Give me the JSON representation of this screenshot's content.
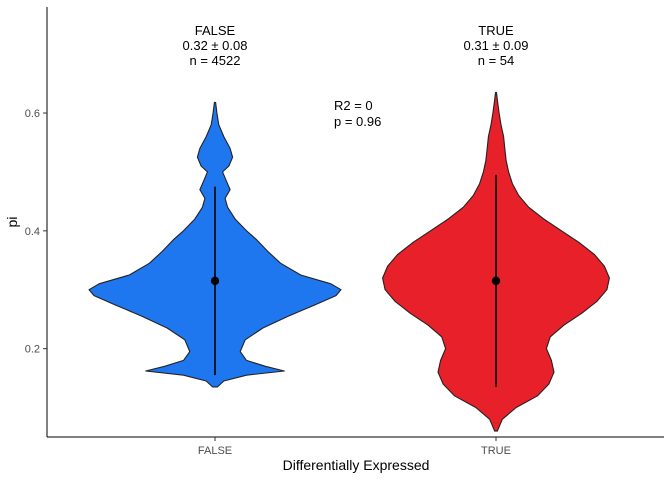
{
  "chart_data": {
    "type": "violin",
    "xlabel": "Differentially Expressed",
    "ylabel": "pi",
    "ylim": [
      0.05,
      0.78
    ],
    "yticks": [
      0.2,
      0.4,
      0.6
    ],
    "ytick_labels": [
      "0.2",
      "0.4",
      "0.6"
    ],
    "grid": false,
    "categories": [
      "FALSE",
      "TRUE"
    ],
    "groups": [
      {
        "category": "FALSE",
        "color": "#1f77f0",
        "header": "FALSE",
        "stat_line": "0.32 ± 0.08",
        "n_line": "n = 4522",
        "mean": 0.315,
        "err_low": 0.155,
        "err_high": 0.475,
        "density": [
          [
            0.135,
            0.02
          ],
          [
            0.145,
            0.07
          ],
          [
            0.155,
            0.25
          ],
          [
            0.162,
            0.55
          ],
          [
            0.17,
            0.4
          ],
          [
            0.18,
            0.25
          ],
          [
            0.195,
            0.2
          ],
          [
            0.215,
            0.24
          ],
          [
            0.235,
            0.38
          ],
          [
            0.255,
            0.58
          ],
          [
            0.275,
            0.8
          ],
          [
            0.29,
            0.96
          ],
          [
            0.3,
            1.0
          ],
          [
            0.31,
            0.92
          ],
          [
            0.325,
            0.68
          ],
          [
            0.345,
            0.52
          ],
          [
            0.365,
            0.42
          ],
          [
            0.385,
            0.33
          ],
          [
            0.4,
            0.25
          ],
          [
            0.42,
            0.16
          ],
          [
            0.44,
            0.1
          ],
          [
            0.455,
            0.08
          ],
          [
            0.47,
            0.12
          ],
          [
            0.485,
            0.09
          ],
          [
            0.5,
            0.06
          ],
          [
            0.51,
            0.11
          ],
          [
            0.525,
            0.14
          ],
          [
            0.54,
            0.12
          ],
          [
            0.56,
            0.07
          ],
          [
            0.58,
            0.03
          ],
          [
            0.6,
            0.015
          ],
          [
            0.618,
            0.005
          ]
        ]
      },
      {
        "category": "TRUE",
        "color": "#e8202a",
        "header": "TRUE",
        "stat_line": "0.31 ± 0.09",
        "n_line": "n = 54",
        "mean": 0.315,
        "err_low": 0.135,
        "err_high": 0.495,
        "density": [
          [
            0.06,
            0.01
          ],
          [
            0.08,
            0.05
          ],
          [
            0.1,
            0.16
          ],
          [
            0.12,
            0.33
          ],
          [
            0.14,
            0.42
          ],
          [
            0.16,
            0.46
          ],
          [
            0.18,
            0.44
          ],
          [
            0.2,
            0.4
          ],
          [
            0.22,
            0.43
          ],
          [
            0.24,
            0.54
          ],
          [
            0.26,
            0.68
          ],
          [
            0.28,
            0.8
          ],
          [
            0.3,
            0.88
          ],
          [
            0.32,
            0.9
          ],
          [
            0.34,
            0.86
          ],
          [
            0.36,
            0.78
          ],
          [
            0.38,
            0.66
          ],
          [
            0.4,
            0.52
          ],
          [
            0.42,
            0.38
          ],
          [
            0.44,
            0.26
          ],
          [
            0.46,
            0.18
          ],
          [
            0.48,
            0.13
          ],
          [
            0.5,
            0.1
          ],
          [
            0.52,
            0.08
          ],
          [
            0.54,
            0.07
          ],
          [
            0.56,
            0.06
          ],
          [
            0.58,
            0.04
          ],
          [
            0.6,
            0.025
          ],
          [
            0.62,
            0.012
          ],
          [
            0.635,
            0.004
          ]
        ]
      }
    ],
    "annotation": {
      "line1": "R2 = 0",
      "line2": "p = 0.96"
    }
  }
}
